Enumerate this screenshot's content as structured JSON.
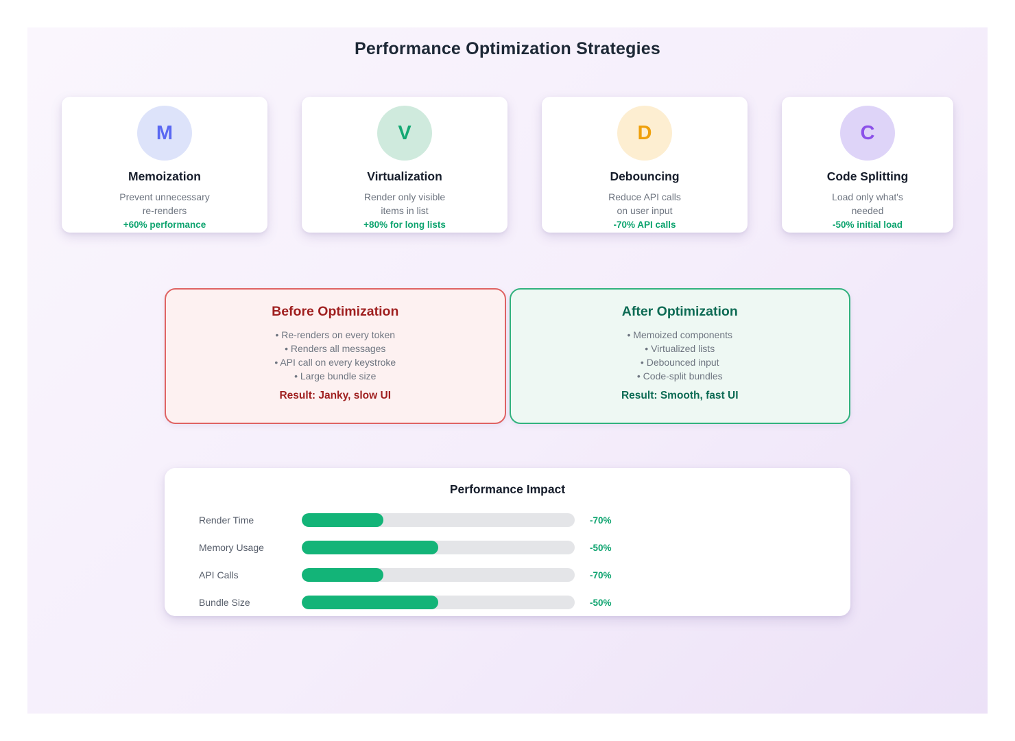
{
  "page": {
    "title": "Performance Optimization Strategies"
  },
  "strategies": [
    {
      "letter": "M",
      "title": "Memoization",
      "description_line1": "Prevent unnecessary",
      "description_line2": "re-renders",
      "metric": "+60% performance",
      "circle_bg": "#dde3fa",
      "letter_color": "#5a68f2"
    },
    {
      "letter": "V",
      "title": "Virtualization",
      "description_line1": "Render only visible",
      "description_line2": "items in list",
      "metric": "+80% for long lists",
      "circle_bg": "#cfeadd",
      "letter_color": "#14a873"
    },
    {
      "letter": "D",
      "title": "Debouncing",
      "description_line1": "Reduce API calls",
      "description_line2": "on user input",
      "metric": "-70% API calls",
      "circle_bg": "#fdeed1",
      "letter_color": "#efa00b"
    },
    {
      "letter": "C",
      "title": "Code Splitting",
      "description_line1": "Load only what's",
      "description_line2": "needed",
      "metric": "-50% initial load",
      "circle_bg": "#ded4f8",
      "letter_color": "#8b51e9"
    }
  ],
  "comparison": {
    "before": {
      "title": "Before Optimization",
      "items": [
        "• Re-renders on every token",
        "• Renders all messages",
        "• API call on every keystroke",
        "• Large bundle size"
      ],
      "result_label": "Result:",
      "result_value": "Janky, slow UI",
      "title_color": "#9f1f1f",
      "border_color": "#df6363",
      "bg_color": "#fdf1f1"
    },
    "after": {
      "title": "After Optimization",
      "items": [
        "• Memoized components",
        "• Virtualized lists",
        "• Debounced input",
        "• Code-split bundles"
      ],
      "result_label": "Result:",
      "result_value": "Smooth, fast UI",
      "title_color": "#0d6b54",
      "border_color": "#31b27d",
      "bg_color": "#eef8f3"
    }
  },
  "chart_data": {
    "type": "bar",
    "orientation": "horizontal",
    "title": "Performance Impact",
    "categories": [
      "Render Time",
      "Memory Usage",
      "API Calls",
      "Bundle Size"
    ],
    "values": [
      -70,
      -50,
      -70,
      -50
    ],
    "value_labels": [
      "-70%",
      "-50%",
      "-70%",
      "-50%"
    ],
    "bar_fill_percent": [
      30,
      50,
      30,
      50
    ],
    "bar_color": "#13b478",
    "track_color": "#e4e5e8",
    "value_color": "#0ca36e",
    "xlim": [
      0,
      100
    ],
    "grid": false,
    "legend": false
  },
  "colors": {
    "page_background": "#ffffff",
    "panel_gradient_start": "#faf6fd",
    "panel_gradient_end": "#ece1f7",
    "heading": "#1d2836",
    "body_text": "#6e7580",
    "metric_green": "#0ca36e"
  }
}
